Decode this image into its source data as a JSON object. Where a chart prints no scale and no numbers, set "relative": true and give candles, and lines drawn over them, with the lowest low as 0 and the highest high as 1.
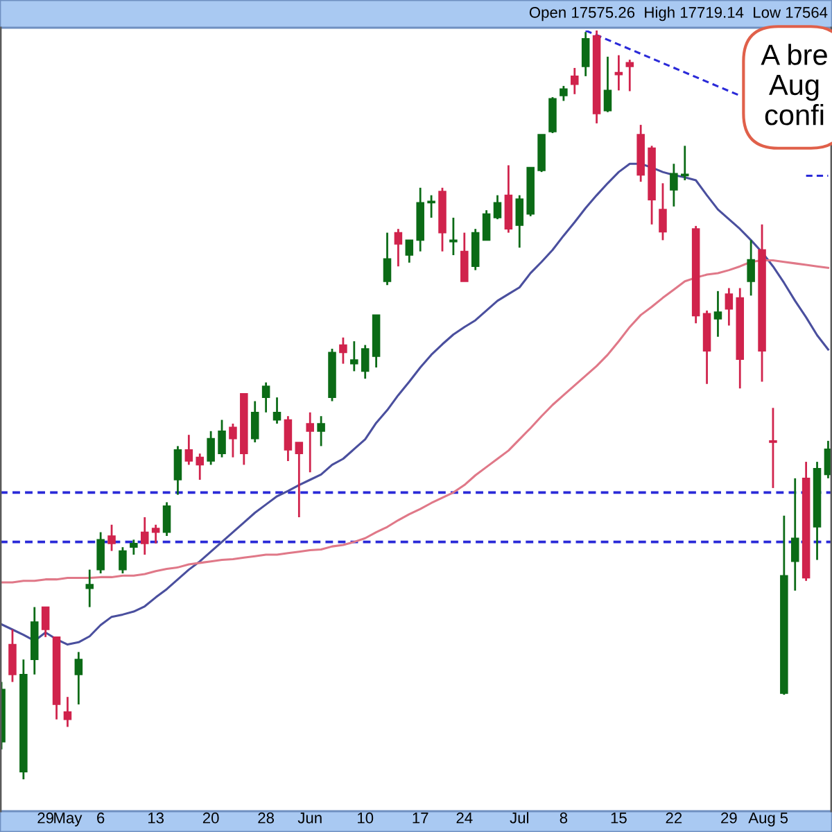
{
  "chart_data": {
    "type": "candlestick",
    "relative": true,
    "subtitle": "Open 17575.26  High 17719.14  Low 17564",
    "annotations": [
      "A bre\nAug\nconfi"
    ],
    "categories": [
      null,
      null,
      null,
      null,
      "29",
      null,
      "May",
      null,
      null,
      "6",
      null,
      null,
      null,
      null,
      "13",
      null,
      null,
      null,
      null,
      "20",
      null,
      null,
      null,
      null,
      "28",
      null,
      null,
      null,
      "Jun",
      null,
      null,
      null,
      null,
      "10",
      null,
      null,
      null,
      null,
      "17",
      null,
      null,
      null,
      "24",
      null,
      null,
      null,
      null,
      "Jul",
      null,
      null,
      null,
      "8",
      null,
      null,
      null,
      null,
      "15",
      null,
      null,
      null,
      null,
      "22",
      null,
      null,
      null,
      null,
      "29",
      null,
      null,
      "Aug",
      null,
      "5",
      null,
      null,
      null,
      null
    ],
    "ohlc": [
      [
        0.05,
        0.13,
        0.04,
        0.12
      ],
      [
        0.18,
        0.2,
        0.13,
        0.14
      ],
      [
        0.01,
        0.16,
        0,
        0.14
      ],
      [
        0.16,
        0.23,
        0.14,
        0.21
      ],
      [
        0.23,
        0.23,
        0.19,
        0.2
      ],
      [
        0.19,
        0.19,
        0.08,
        0.1
      ],
      [
        0.09,
        0.11,
        0.07,
        0.08
      ],
      [
        0.14,
        0.17,
        0.1,
        0.16
      ],
      [
        0.255,
        0.28,
        0.23,
        0.26
      ],
      [
        0.28,
        0.33,
        0.275,
        0.32
      ],
      [
        0.325,
        0.34,
        0.305,
        0.315
      ],
      [
        0.28,
        0.31,
        0.275,
        0.305
      ],
      [
        0.31,
        0.32,
        0.3,
        0.315
      ],
      [
        0.33,
        0.35,
        0.3,
        0.315
      ],
      [
        0.335,
        0.34,
        0.315,
        0.33
      ],
      [
        0.33,
        0.37,
        0.325,
        0.365
      ],
      [
        0.4,
        0.445,
        0.38,
        0.44
      ],
      [
        0.44,
        0.46,
        0.42,
        0.425
      ],
      [
        0.43,
        0.435,
        0.4,
        0.42
      ],
      [
        0.425,
        0.465,
        0.42,
        0.455
      ],
      [
        0.435,
        0.48,
        0.43,
        0.465
      ],
      [
        0.47,
        0.475,
        0.43,
        0.455
      ],
      [
        0.515,
        0.515,
        0.42,
        0.435
      ],
      [
        0.455,
        0.505,
        0.45,
        0.49
      ],
      [
        0.51,
        0.53,
        0.49,
        0.525
      ],
      [
        0.48,
        0.51,
        0.475,
        0.49
      ],
      [
        0.48,
        0.485,
        0.425,
        0.44
      ],
      [
        0.45,
        0.45,
        0.35,
        0.435
      ],
      [
        0.475,
        0.49,
        0.41,
        0.465
      ],
      [
        0.465,
        0.485,
        0.445,
        0.475
      ],
      [
        0.51,
        0.575,
        0.505,
        0.57
      ],
      [
        0.58,
        0.59,
        0.555,
        0.57
      ],
      [
        0.555,
        0.585,
        0.545,
        0.56
      ],
      [
        0.545,
        0.58,
        0.535,
        0.575
      ],
      [
        0.565,
        0.62,
        0.55,
        0.62
      ],
      [
        0.665,
        0.73,
        0.66,
        0.695
      ],
      [
        0.73,
        0.735,
        0.685,
        0.715
      ],
      [
        0.7,
        0.72,
        0.69,
        0.72
      ],
      [
        0.72,
        0.79,
        0.705,
        0.77
      ],
      [
        0.77,
        0.78,
        0.75,
        0.772
      ],
      [
        0.785,
        0.79,
        0.705,
        0.73
      ],
      [
        0.718,
        0.75,
        0.7,
        0.72
      ],
      [
        0.705,
        0.73,
        0.665,
        0.665
      ],
      [
        0.685,
        0.735,
        0.68,
        0.73
      ],
      [
        0.72,
        0.76,
        0.72,
        0.755
      ],
      [
        0.75,
        0.78,
        0.748,
        0.77
      ],
      [
        0.78,
        0.82,
        0.73,
        0.735
      ],
      [
        0.74,
        0.78,
        0.71,
        0.775
      ],
      [
        0.755,
        0.817,
        0.752,
        0.817
      ],
      [
        0.813,
        0.861,
        0.811,
        0.861
      ],
      [
        0.865,
        0.911,
        0.863,
        0.909
      ],
      [
        0.913,
        0.926,
        0.906,
        0.922
      ],
      [
        0.939,
        0.95,
        0.915,
        0.928
      ],
      [
        0.952,
        0.998,
        0.939,
        0.989
      ],
      [
        0.993,
        1,
        0.876,
        0.889
      ],
      [
        0.893,
        0.965,
        0.891,
        0.92
      ],
      [
        0.944,
        0.967,
        0.92,
        0.941
      ],
      [
        0.957,
        0.961,
        0.919,
        0.952
      ],
      [
        0.861,
        0.874,
        0.798,
        0.807
      ],
      [
        0.843,
        0.846,
        0.741,
        0.774
      ],
      [
        0.761,
        0.796,
        0.72,
        0.731
      ],
      [
        0.787,
        0.822,
        0.765,
        0.809
      ],
      [
        0.806,
        0.846,
        0.8,
        0.808
      ],
      [
        0.735,
        0.739,
        0.609,
        0.619
      ],
      [
        0.622,
        0.626,
        0.528,
        0.572
      ],
      [
        0.615,
        0.652,
        0.591,
        0.624
      ],
      [
        0.648,
        0.656,
        0.606,
        0.628
      ],
      [
        0.643,
        0.656,
        0.522,
        0.561
      ],
      [
        0.665,
        0.72,
        0.646,
        0.694
      ],
      [
        0.707,
        0.741,
        0.531,
        0.572
      ],
      [
        0.452,
        0.496,
        0.389,
        0.45
      ],
      [
        0.115,
        0.352,
        0.113,
        0.272
      ],
      [
        0.291,
        0.402,
        0.252,
        0.322
      ],
      [
        0.402,
        0.424,
        0.265,
        0.269
      ],
      [
        0.337,
        0.424,
        0.293,
        0.415
      ],
      [
        0.407,
        0.452,
        0.402,
        0.441
      ]
    ],
    "colors": [
      "#0b6b16",
      "#d0234c",
      "#0b6b16",
      "#0b6b16",
      "#d0234c",
      "#d0234c",
      "#d0234c",
      "#0b6b16",
      "#0b6b16",
      "#0b6b16",
      "#d0234c",
      "#0b6b16",
      "#0b6b16",
      "#d0234c",
      "#d0234c",
      "#0b6b16",
      "#0b6b16",
      "#d0234c",
      "#d0234c",
      "#0b6b16",
      "#0b6b16",
      "#d0234c",
      "#d0234c",
      "#0b6b16",
      "#0b6b16",
      "#0b6b16",
      "#d0234c",
      "#d0234c",
      "#d0234c",
      "#0b6b16",
      "#0b6b16",
      "#d0234c",
      "#0b6b16",
      "#0b6b16",
      "#0b6b16",
      "#0b6b16",
      "#d0234c",
      "#0b6b16",
      "#0b6b16",
      "#0b6b16",
      "#d0234c",
      "#0b6b16",
      "#d0234c",
      "#0b6b16",
      "#0b6b16",
      "#0b6b16",
      "#d0234c",
      "#0b6b16",
      "#0b6b16",
      "#0b6b16",
      "#0b6b16",
      "#0b6b16",
      "#d0234c",
      "#0b6b16",
      "#d0234c",
      "#0b6b16",
      "#d0234c",
      "#d0234c",
      "#d0234c",
      "#d0234c",
      "#d0234c",
      "#0b6b16",
      "#0b6b16",
      "#d0234c",
      "#d0234c",
      "#0b6b16",
      "#d0234c",
      "#d0234c",
      "#0b6b16",
      "#d0234c",
      "#d0234c",
      "#0b6b16",
      "#0b6b16",
      "#d0234c",
      "#0b6b16",
      "#0b6b16"
    ],
    "series": [
      {
        "type": "line",
        "color": "#4a4f9e",
        "values": [
          0.207,
          0.2,
          0.193,
          0.185,
          0.196,
          0.187,
          0.18,
          0.183,
          0.191,
          0.206,
          0.217,
          0.22,
          0.224,
          0.231,
          0.243,
          0.254,
          0.267,
          0.28,
          0.291,
          0.304,
          0.317,
          0.33,
          0.343,
          0.356,
          0.367,
          0.378,
          0.385,
          0.393,
          0.4,
          0.407,
          0.42,
          0.428,
          0.441,
          0.454,
          0.476,
          0.493,
          0.513,
          0.531,
          0.55,
          0.567,
          0.581,
          0.594,
          0.604,
          0.613,
          0.626,
          0.639,
          0.648,
          0.657,
          0.676,
          0.691,
          0.707,
          0.726,
          0.744,
          0.763,
          0.78,
          0.796,
          0.811,
          0.822,
          0.822,
          0.817,
          0.811,
          0.807,
          0.804,
          0.8,
          0.78,
          0.761,
          0.748,
          0.735,
          0.72,
          0.704,
          0.685,
          0.663,
          0.639,
          0.617,
          0.593,
          0.574
        ]
      },
      {
        "type": "line",
        "color": "#e07888",
        "values": [
          0.263,
          0.263,
          0.265,
          0.265,
          0.267,
          0.267,
          0.269,
          0.269,
          0.269,
          0.27,
          0.27,
          0.272,
          0.272,
          0.274,
          0.278,
          0.281,
          0.283,
          0.287,
          0.289,
          0.291,
          0.293,
          0.294,
          0.296,
          0.298,
          0.3,
          0.3,
          0.302,
          0.304,
          0.306,
          0.307,
          0.311,
          0.313,
          0.317,
          0.322,
          0.33,
          0.337,
          0.346,
          0.354,
          0.361,
          0.369,
          0.376,
          0.383,
          0.393,
          0.406,
          0.417,
          0.428,
          0.439,
          0.454,
          0.469,
          0.485,
          0.5,
          0.513,
          0.526,
          0.539,
          0.552,
          0.567,
          0.585,
          0.604,
          0.62,
          0.631,
          0.643,
          0.654,
          0.665,
          0.67,
          0.674,
          0.676,
          0.68,
          0.685,
          0.691,
          0.693,
          0.693,
          0.691,
          0.689,
          0.687,
          0.685,
          0.683
        ]
      },
      {
        "type": "line",
        "color": "#2a2ad8",
        "line_style": "dashed",
        "values": [
          null,
          null,
          null,
          null,
          null,
          null,
          null,
          null,
          null,
          null,
          null,
          null,
          null,
          null,
          null,
          null,
          null,
          null,
          null,
          null,
          null,
          null,
          null,
          null,
          null,
          null,
          null,
          null,
          null,
          null,
          null,
          null,
          null,
          null,
          null,
          null,
          null,
          null,
          null,
          null,
          null,
          null,
          null,
          null,
          null,
          null,
          null,
          null,
          null,
          null,
          null,
          null,
          null,
          1.0,
          null,
          null,
          null,
          null,
          null,
          null,
          null,
          null,
          null,
          null,
          null,
          null,
          null,
          0.913,
          null,
          null,
          null,
          null,
          null,
          null,
          null,
          null
        ]
      },
      {
        "type": "line",
        "color": "#2a2ad8",
        "line_style": "dashed",
        "values": [
          null,
          null,
          null,
          null,
          null,
          null,
          null,
          null,
          null,
          null,
          null,
          null,
          null,
          null,
          null,
          null,
          null,
          null,
          null,
          null,
          null,
          null,
          null,
          null,
          null,
          null,
          null,
          null,
          null,
          null,
          null,
          null,
          null,
          null,
          null,
          null,
          null,
          null,
          null,
          null,
          null,
          null,
          null,
          null,
          null,
          null,
          null,
          null,
          null,
          null,
          null,
          null,
          null,
          null,
          null,
          null,
          null,
          null,
          null,
          null,
          null,
          null,
          null,
          null,
          null,
          null,
          null,
          null,
          null,
          null,
          null,
          null,
          null,
          0.806,
          null,
          0.806
        ]
      }
    ],
    "ref_lines": [
      {
        "axis": "y",
        "value": 0.383,
        "color": "#2a2ad8",
        "line_style": "dashed"
      },
      {
        "axis": "y",
        "value": 0.317,
        "color": "#2a2ad8",
        "line_style": "dashed"
      }
    ],
    "grid": false,
    "legend": false
  }
}
